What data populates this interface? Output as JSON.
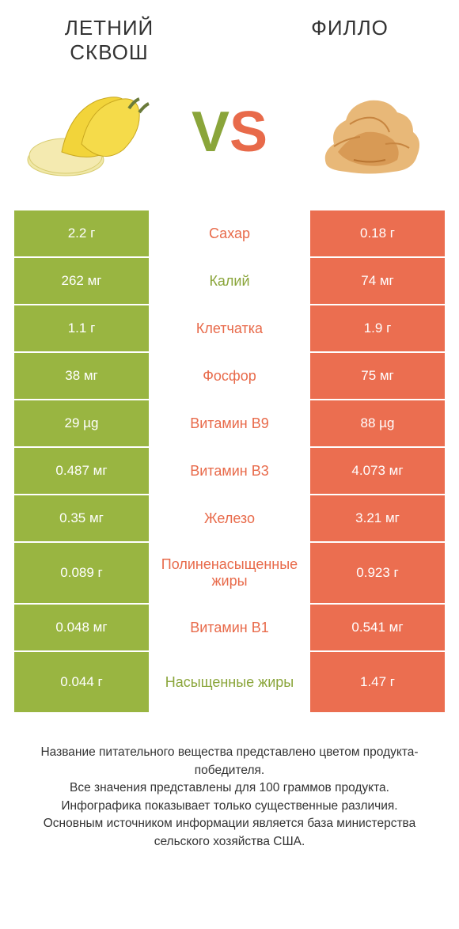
{
  "header": {
    "left_title": "ЛЕТНИЙ СКВОШ",
    "right_title": "ФИЛЛО",
    "vs_v": "V",
    "vs_s": "S"
  },
  "colors": {
    "green": "#99b541",
    "orange": "#eb6e50",
    "green_text": "#8aa53a",
    "orange_text": "#e86a4a"
  },
  "rows": [
    {
      "left": "2.2 г",
      "label": "Сахар",
      "right": "0.18 г",
      "winner": "orange",
      "tall": false
    },
    {
      "left": "262 мг",
      "label": "Калий",
      "right": "74 мг",
      "winner": "green",
      "tall": false
    },
    {
      "left": "1.1 г",
      "label": "Клетчатка",
      "right": "1.9 г",
      "winner": "orange",
      "tall": false
    },
    {
      "left": "38 мг",
      "label": "Фосфор",
      "right": "75 мг",
      "winner": "orange",
      "tall": false
    },
    {
      "left": "29 µg",
      "label": "Витамин B9",
      "right": "88 µg",
      "winner": "orange",
      "tall": false
    },
    {
      "left": "0.487 мг",
      "label": "Витамин B3",
      "right": "4.073 мг",
      "winner": "orange",
      "tall": false
    },
    {
      "left": "0.35 мг",
      "label": "Железо",
      "right": "3.21 мг",
      "winner": "orange",
      "tall": false
    },
    {
      "left": "0.089 г",
      "label": "Полиненасыщенные жиры",
      "right": "0.923 г",
      "winner": "orange",
      "tall": true
    },
    {
      "left": "0.048 мг",
      "label": "Витамин B1",
      "right": "0.541 мг",
      "winner": "orange",
      "tall": false
    },
    {
      "left": "0.044 г",
      "label": "Насыщенные жиры",
      "right": "1.47 г",
      "winner": "green",
      "tall": true
    }
  ],
  "footer": {
    "line1": "Название питательного вещества представлено цветом продукта-победителя.",
    "line2": "Все значения представлены для 100 граммов продукта.",
    "line3": "Инфографика показывает только существенные различия.",
    "line4": "Основным источником информации является база министерства сельского хозяйства США."
  }
}
